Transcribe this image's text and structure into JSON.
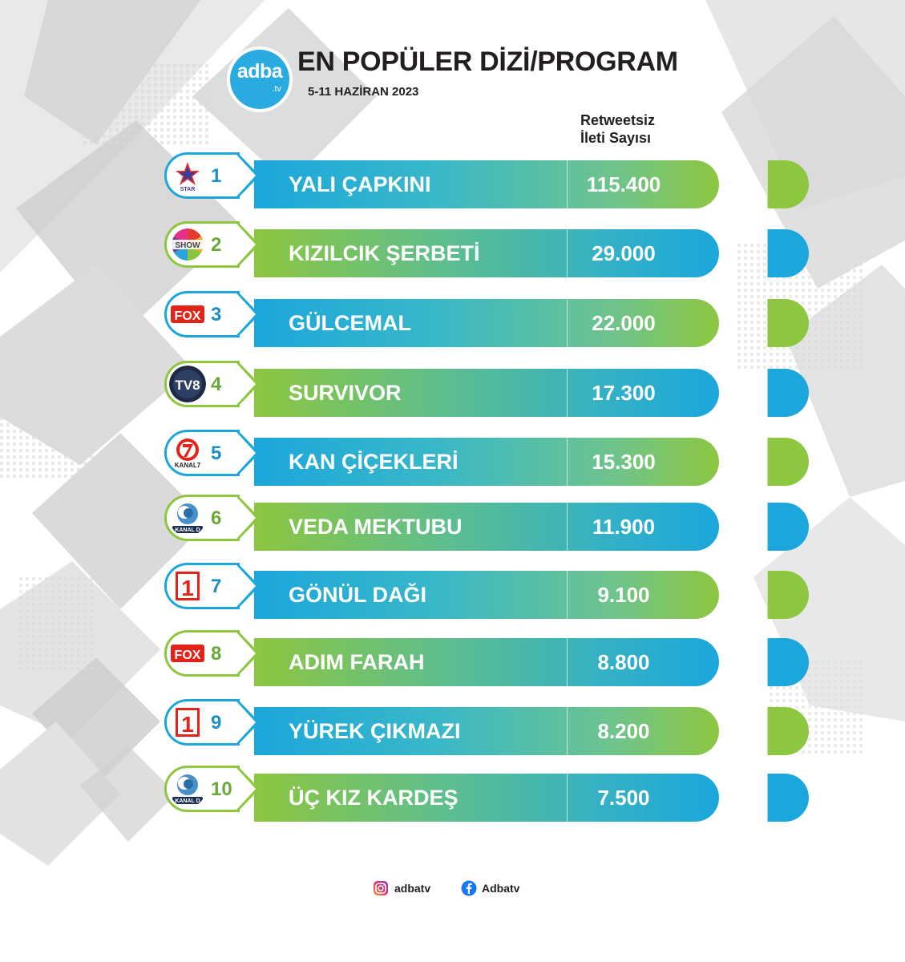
{
  "header": {
    "logo_text": "adba",
    "logo_suffix": ".tv",
    "title": "EN POPÜLER DİZİ/PROGRAM",
    "subtitle": "5-11 HAZİRAN 2023",
    "column_header_line1": "Retweetsiz",
    "column_header_line2": "İleti Sayısı"
  },
  "rows": [
    {
      "rank": "1",
      "channel_icon": "star-tv-logo",
      "name": "YALI ÇAPKINI",
      "value": "115.400"
    },
    {
      "rank": "2",
      "channel_icon": "show-tv-logo",
      "name": "KIZILCIK ŞERBETİ",
      "value": "29.000"
    },
    {
      "rank": "3",
      "channel_icon": "fox-logo",
      "name": "GÜLCEMAL",
      "value": "22.000"
    },
    {
      "rank": "4",
      "channel_icon": "tv8-logo",
      "name": "SURVIVOR",
      "value": "17.300"
    },
    {
      "rank": "5",
      "channel_icon": "kanal7-logo",
      "name": "KAN ÇİÇEKLERİ",
      "value": "15.300"
    },
    {
      "rank": "6",
      "channel_icon": "kanal-d-logo",
      "name": "VEDA MEKTUBU",
      "value": "11.900"
    },
    {
      "rank": "7",
      "channel_icon": "atv-1-logo",
      "name": "GÖNÜL DAĞI",
      "value": "9.100"
    },
    {
      "rank": "8",
      "channel_icon": "fox-logo",
      "name": "ADIM FARAH",
      "value": "8.800"
    },
    {
      "rank": "9",
      "channel_icon": "atv-1-logo",
      "name": "YÜREK ÇIKMAZI",
      "value": "8.200"
    },
    {
      "rank": "10",
      "channel_icon": "kanal-d-logo",
      "name": "ÜÇ KIZ KARDEŞ",
      "value": "7.500"
    }
  ],
  "channel_logo_text": {
    "star": "STAR",
    "show": "SHOW",
    "fox": "FOX",
    "tv8": "TV8",
    "kanal7": "KANAL7",
    "kanal_d": "KANAL D",
    "atv": "1"
  },
  "footer": {
    "instagram_icon": "instagram-icon",
    "instagram_handle": "adbatv",
    "facebook_icon": "facebook-icon",
    "facebook_handle": "Adbatv"
  },
  "colors": {
    "brand_blue": "#1ba7dc",
    "brand_green": "#8dc63f",
    "logo_blue": "#29abe2",
    "text_dark": "#231f20"
  }
}
